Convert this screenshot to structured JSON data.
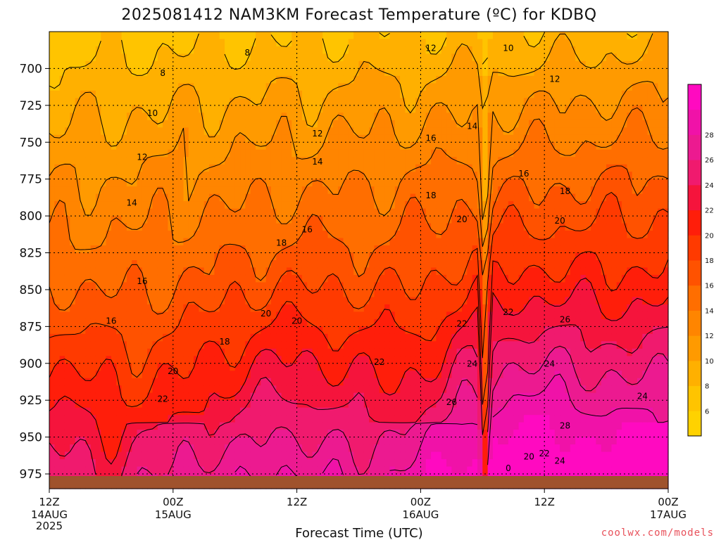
{
  "chart_data": {
    "type": "heatmap",
    "title": "2025081412 NAM3KM Forecast Temperature (ºC) for KDBQ",
    "xlabel": "Forecast Time (UTC)",
    "ylabel": "",
    "y_reversed": true,
    "y_range": [
      675,
      985
    ],
    "y_ticks": [
      700,
      725,
      750,
      775,
      800,
      825,
      850,
      875,
      900,
      925,
      950,
      975
    ],
    "x_range": [
      0,
      60
    ],
    "x_ticks": [
      {
        "hour": 0,
        "label": "12Z",
        "sub": "14AUG",
        "sub2": "2025"
      },
      {
        "hour": 12,
        "label": "00Z",
        "sub": "15AUG",
        "sub2": ""
      },
      {
        "hour": 24,
        "label": "12Z",
        "sub": "",
        "sub2": ""
      },
      {
        "hour": 36,
        "label": "00Z",
        "sub": "16AUG",
        "sub2": ""
      },
      {
        "hour": 48,
        "label": "12Z",
        "sub": "",
        "sub2": ""
      },
      {
        "hour": 60,
        "label": "00Z",
        "sub": "17AUG",
        "sub2": ""
      }
    ],
    "grid": true,
    "colorbar": {
      "placement": "right",
      "levels": [
        4,
        6,
        8,
        10,
        12,
        14,
        16,
        18,
        20,
        22,
        24,
        26,
        28,
        30
      ],
      "tick_labels": [
        6,
        8,
        10,
        12,
        14,
        16,
        18,
        20,
        22,
        24,
        26,
        28
      ],
      "colors": [
        "#ffd200",
        "#ffc400",
        "#ffb000",
        "#ff9a00",
        "#ff8500",
        "#ff6e00",
        "#ff5200",
        "#ff3a00",
        "#ff1e0a",
        "#f5143c",
        "#f01a6e",
        "#ec1a90",
        "#f012a8",
        "#ff0ac0"
      ]
    },
    "contour_labels": [
      {
        "value": "8",
        "hour": 19.2,
        "p": 689
      },
      {
        "value": "8",
        "hour": 11.0,
        "p": 703
      },
      {
        "value": "12",
        "hour": 37.0,
        "p": 686
      },
      {
        "value": "10",
        "hour": 44.5,
        "p": 686
      },
      {
        "value": "12",
        "hour": 49.0,
        "p": 707
      },
      {
        "value": "10",
        "hour": 10.0,
        "p": 730
      },
      {
        "value": "12",
        "hour": 26.0,
        "p": 744
      },
      {
        "value": "14",
        "hour": 41.0,
        "p": 739
      },
      {
        "value": "16",
        "hour": 37.0,
        "p": 747
      },
      {
        "value": "12",
        "hour": 9.0,
        "p": 760
      },
      {
        "value": "14",
        "hour": 26.0,
        "p": 763
      },
      {
        "value": "16",
        "hour": 46.0,
        "p": 771
      },
      {
        "value": "18",
        "hour": 50.0,
        "p": 783
      },
      {
        "value": "14",
        "hour": 8.0,
        "p": 791
      },
      {
        "value": "16",
        "hour": 25.0,
        "p": 809
      },
      {
        "value": "18",
        "hour": 37.0,
        "p": 786
      },
      {
        "value": "20",
        "hour": 40.0,
        "p": 802
      },
      {
        "value": "20",
        "hour": 49.5,
        "p": 803
      },
      {
        "value": "18",
        "hour": 22.5,
        "p": 818
      },
      {
        "value": "16",
        "hour": 9.0,
        "p": 844
      },
      {
        "value": "22",
        "hour": 44.5,
        "p": 865
      },
      {
        "value": "20",
        "hour": 21.0,
        "p": 866
      },
      {
        "value": "16",
        "hour": 6.0,
        "p": 871
      },
      {
        "value": "20",
        "hour": 24.0,
        "p": 871
      },
      {
        "value": "22",
        "hour": 40.0,
        "p": 873
      },
      {
        "value": "26",
        "hour": 50.0,
        "p": 870
      },
      {
        "value": "18",
        "hour": 17.0,
        "p": 885
      },
      {
        "value": "22",
        "hour": 32.0,
        "p": 899
      },
      {
        "value": "24",
        "hour": 41.0,
        "p": 900
      },
      {
        "value": "24",
        "hour": 48.5,
        "p": 900
      },
      {
        "value": "20",
        "hour": 12.0,
        "p": 905
      },
      {
        "value": "22",
        "hour": 11.0,
        "p": 924
      },
      {
        "value": "26",
        "hour": 39.0,
        "p": 926
      },
      {
        "value": "24",
        "hour": 57.5,
        "p": 922
      },
      {
        "value": "28",
        "hour": 50.0,
        "p": 942
      },
      {
        "value": "20",
        "hour": 46.5,
        "p": 963
      },
      {
        "value": "22",
        "hour": 48.0,
        "p": 961
      },
      {
        "value": "24",
        "hour": 49.5,
        "p": 966
      },
      {
        "value": "0",
        "hour": 44.5,
        "p": 971
      }
    ]
  },
  "footer": {
    "credit": "coolwx.com/models"
  }
}
